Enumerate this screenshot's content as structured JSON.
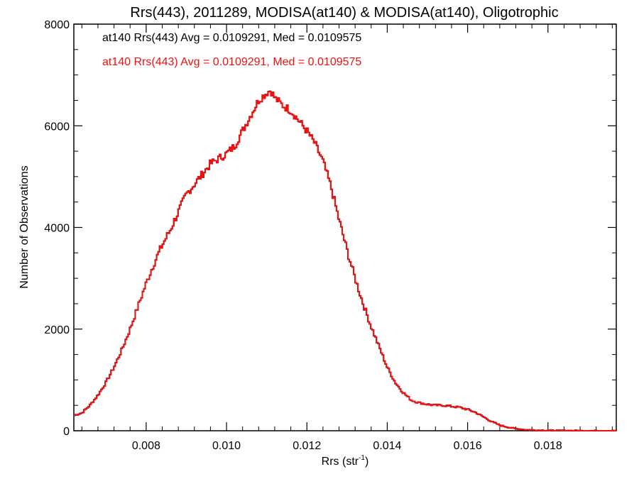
{
  "chart_data": {
    "type": "line",
    "title": "Rrs(443), 2011289, MODISA(at140) & MODISA(at140), Oligotrophic",
    "xlabel": "Rrs (str",
    "xlabel_sup": "-1",
    "xlabel_end": ")",
    "ylabel": "Number of Observations",
    "xlim": [
      0.0062,
      0.0197
    ],
    "ylim": [
      0,
      8000
    ],
    "xticks": [
      0.008,
      0.01,
      0.012,
      0.014,
      0.016,
      0.018
    ],
    "xtick_labels": [
      "0.008",
      "0.010",
      "0.012",
      "0.014",
      "0.016",
      "0.018"
    ],
    "yticks": [
      0,
      2000,
      4000,
      6000,
      8000
    ],
    "ytick_labels": [
      "0",
      "2000",
      "4000",
      "6000",
      "8000"
    ],
    "grid": false,
    "legend_placement": "top-left",
    "series": [
      {
        "name": "at140 Rrs(443) Avg = 0.0109291, Med = 0.0109575",
        "color": "#000000",
        "x": [
          0.0062,
          0.0064,
          0.0066,
          0.0068,
          0.007,
          0.0072,
          0.0074,
          0.0076,
          0.0078,
          0.008,
          0.0082,
          0.0084,
          0.0086,
          0.0088,
          0.009,
          0.0092,
          0.0094,
          0.0096,
          0.0098,
          0.01,
          0.0102,
          0.0104,
          0.0106,
          0.0108,
          0.011,
          0.0111,
          0.0112,
          0.0114,
          0.0116,
          0.0118,
          0.012,
          0.0122,
          0.0124,
          0.0126,
          0.0128,
          0.013,
          0.0132,
          0.0134,
          0.0136,
          0.0138,
          0.014,
          0.0142,
          0.0144,
          0.0146,
          0.0148,
          0.015,
          0.0152,
          0.0154,
          0.0156,
          0.0158,
          0.016,
          0.0162,
          0.0164,
          0.0166,
          0.0168,
          0.017,
          0.0172,
          0.0174,
          0.0176,
          0.0178,
          0.018,
          0.0182,
          0.0184,
          0.0186,
          0.0188,
          0.019,
          0.0192,
          0.0194,
          0.0197
        ],
        "y": [
          300,
          350,
          500,
          700,
          950,
          1250,
          1600,
          2000,
          2450,
          2900,
          3300,
          3650,
          3950,
          4300,
          4650,
          4850,
          5050,
          5250,
          5350,
          5450,
          5600,
          5900,
          6200,
          6500,
          6650,
          6700,
          6550,
          6400,
          6300,
          6100,
          5900,
          5650,
          5300,
          4800,
          4150,
          3550,
          3000,
          2500,
          2050,
          1650,
          1250,
          950,
          750,
          600,
          550,
          520,
          500,
          500,
          480,
          460,
          420,
          360,
          270,
          180,
          110,
          70,
          40,
          25,
          15,
          10,
          8,
          5,
          4,
          3,
          2,
          2,
          1,
          1,
          1
        ]
      },
      {
        "name": "at140 Rrs(443) Avg = 0.0109291, Med = 0.0109575",
        "color": "#ee1111",
        "x": [
          0.0062,
          0.0064,
          0.0066,
          0.0068,
          0.007,
          0.0072,
          0.0074,
          0.0076,
          0.0078,
          0.008,
          0.0082,
          0.0084,
          0.0086,
          0.0088,
          0.009,
          0.0092,
          0.0094,
          0.0096,
          0.0098,
          0.01,
          0.0102,
          0.0104,
          0.0106,
          0.0108,
          0.011,
          0.0111,
          0.0112,
          0.0114,
          0.0116,
          0.0118,
          0.012,
          0.0122,
          0.0124,
          0.0126,
          0.0128,
          0.013,
          0.0132,
          0.0134,
          0.0136,
          0.0138,
          0.014,
          0.0142,
          0.0144,
          0.0146,
          0.0148,
          0.015,
          0.0152,
          0.0154,
          0.0156,
          0.0158,
          0.016,
          0.0162,
          0.0164,
          0.0166,
          0.0168,
          0.017,
          0.0172,
          0.0174,
          0.0176,
          0.0178,
          0.018,
          0.0182,
          0.0184,
          0.0186,
          0.0188,
          0.019,
          0.0192,
          0.0194,
          0.0197
        ],
        "y": [
          300,
          350,
          500,
          700,
          950,
          1250,
          1600,
          2000,
          2450,
          2900,
          3300,
          3650,
          3950,
          4300,
          4650,
          4850,
          5050,
          5250,
          5350,
          5450,
          5600,
          5900,
          6200,
          6500,
          6650,
          6700,
          6550,
          6400,
          6300,
          6100,
          5900,
          5650,
          5300,
          4800,
          4150,
          3550,
          3000,
          2500,
          2050,
          1650,
          1250,
          950,
          750,
          600,
          550,
          520,
          500,
          500,
          480,
          460,
          420,
          360,
          270,
          180,
          110,
          70,
          40,
          25,
          15,
          10,
          8,
          5,
          4,
          3,
          2,
          2,
          1,
          1,
          1
        ]
      }
    ]
  }
}
